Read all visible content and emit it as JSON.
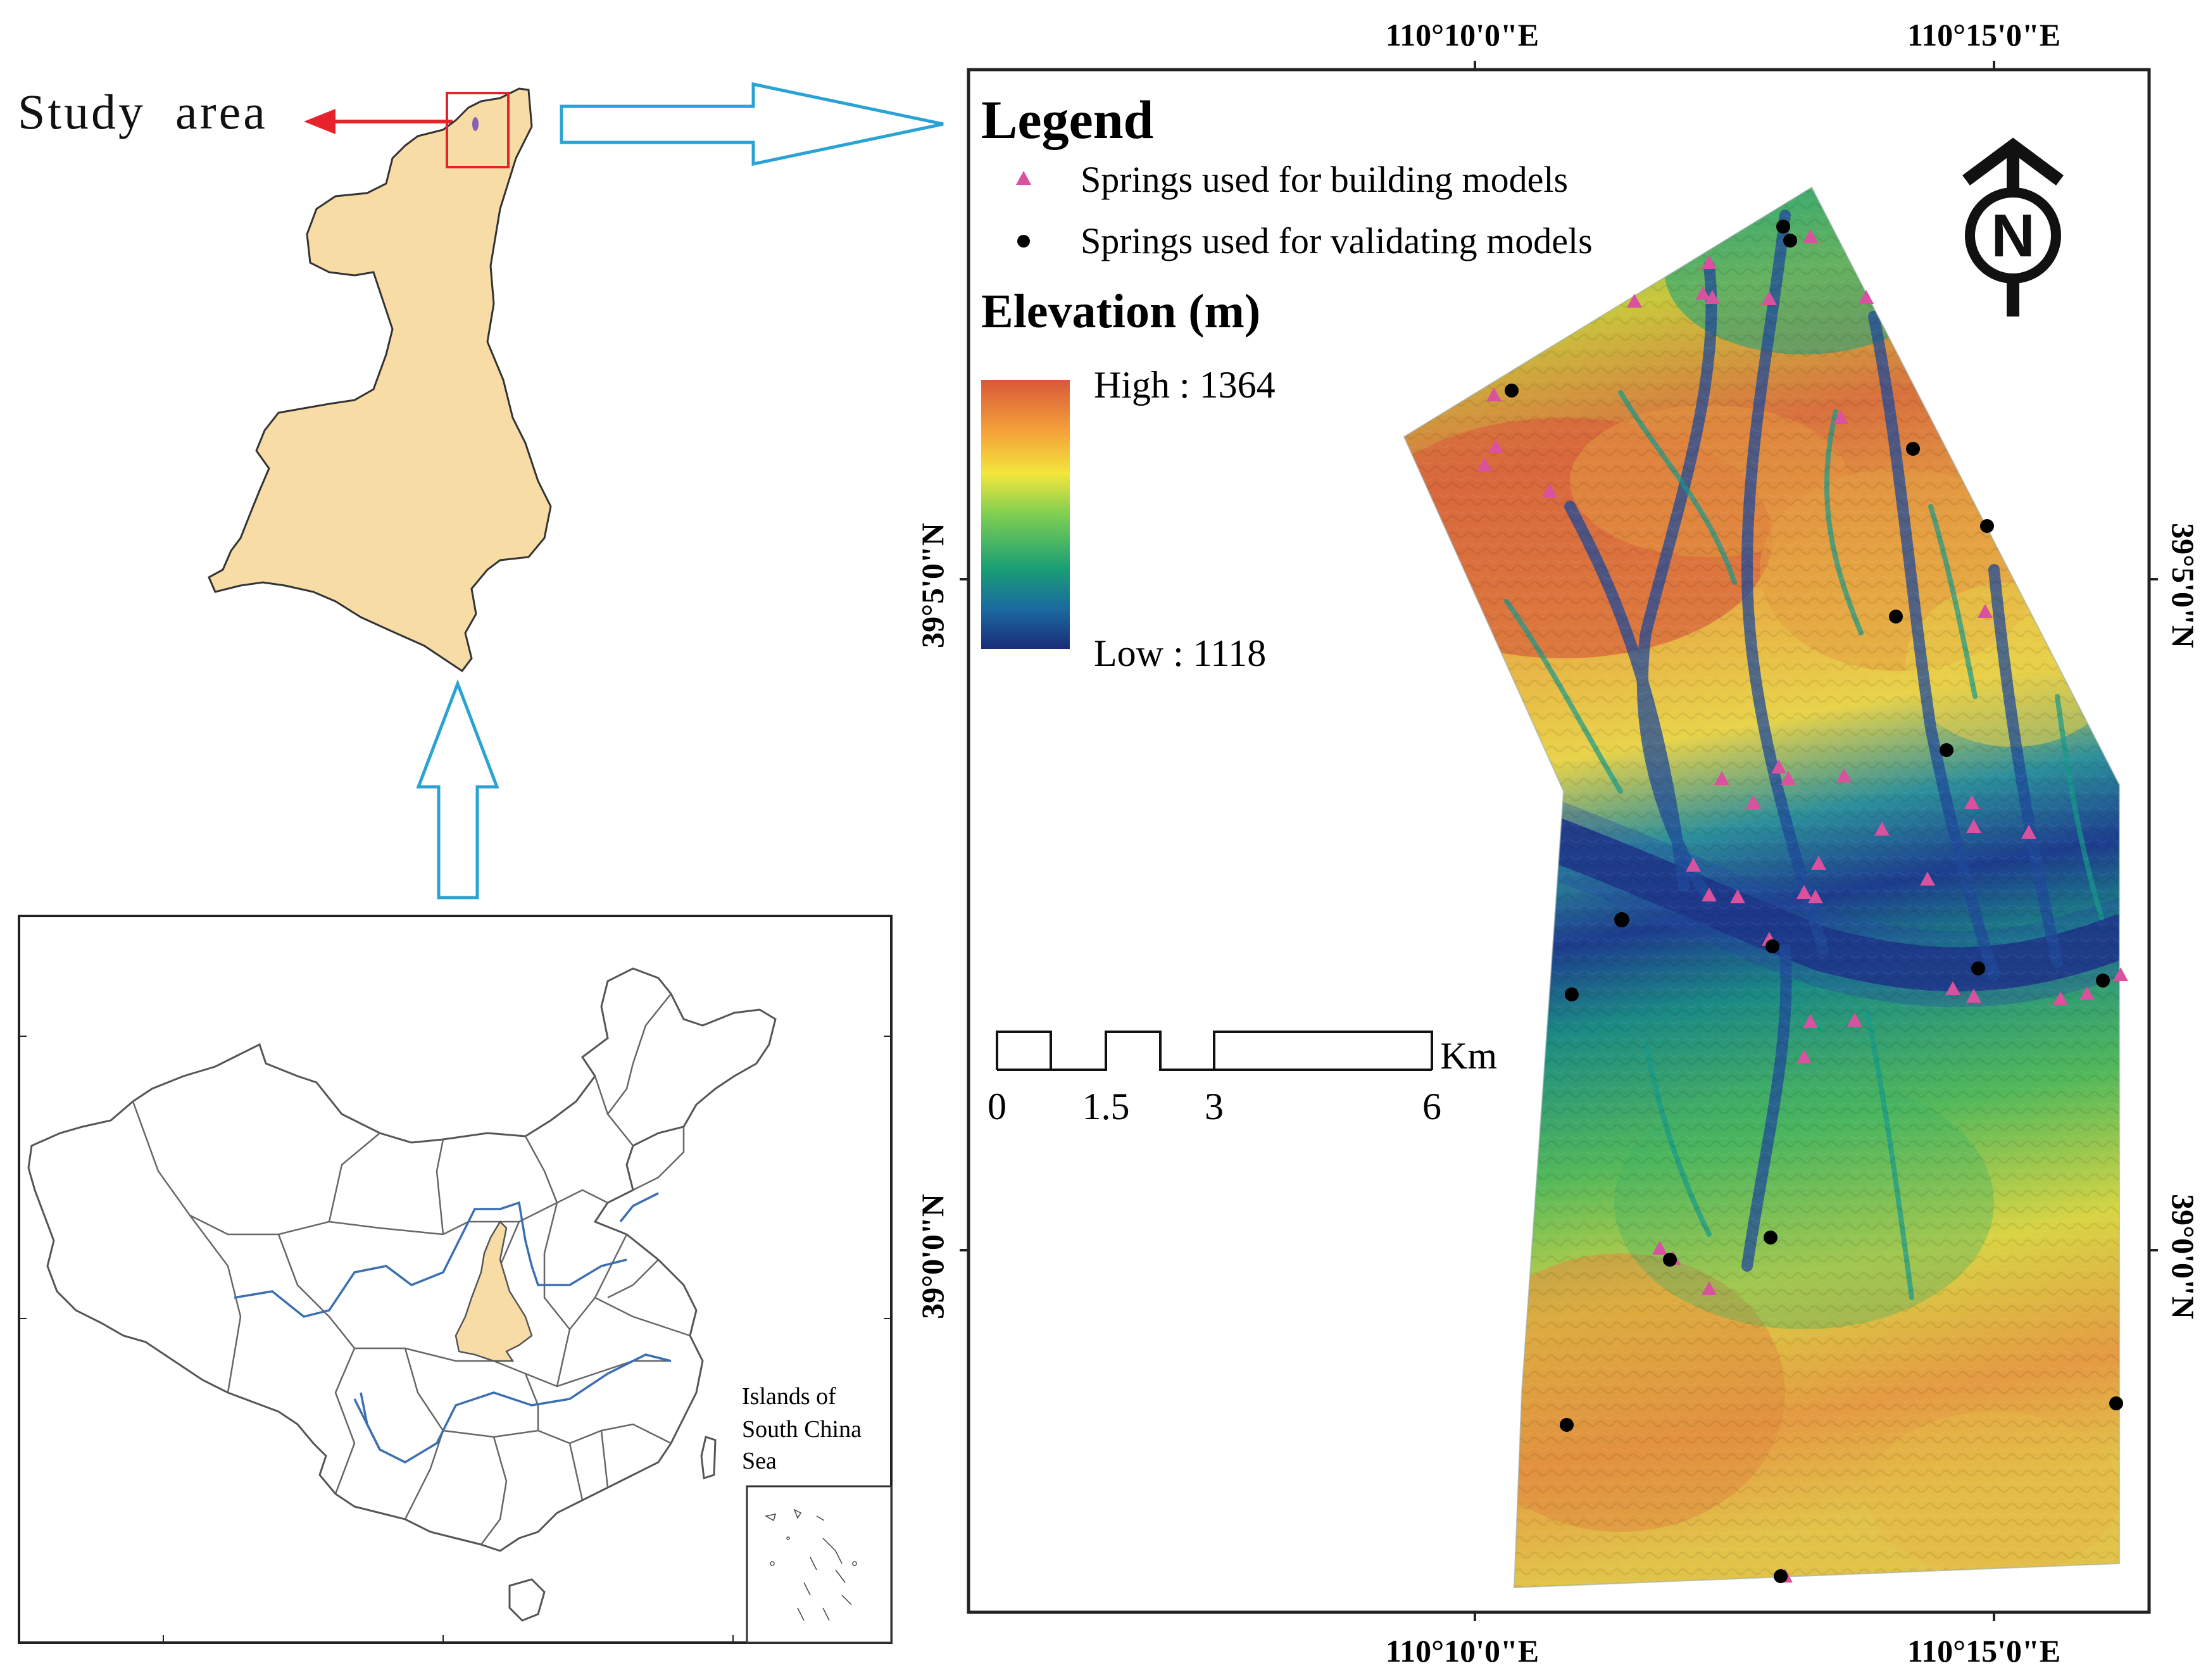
{
  "study_area_label": "Study  area",
  "legend": {
    "title": "Legend",
    "build_label": "Springs used for building models",
    "valid_label": "Springs used for validating models",
    "elevation_title": "Elevation (m)",
    "high_label": "High : 1364",
    "low_label": "Low : 1118",
    "colors": {
      "build": "#d9519f",
      "valid": "#000000"
    }
  },
  "north_arrow": {
    "letter": "N"
  },
  "coords": {
    "x_tick_1": "110°10'0\"E",
    "x_tick_2": "110°15'0\"E",
    "y_tick_1": "39°5'0\"N",
    "y_tick_2": "39°0'0\"N"
  },
  "scale_bar": {
    "unit": "Km",
    "labels": [
      "0",
      "1.5",
      "3",
      "6"
    ]
  },
  "inset": {
    "islands_label_1": "Islands of",
    "islands_label_2": "South China",
    "islands_label_3": "Sea"
  },
  "colors": {
    "province_fill": "#f8dca6",
    "arrow_blue": "#2aa3d4",
    "red": "#e6232a",
    "river_blue": "#3a6fb0",
    "dem_high": "#d2633a",
    "dem_low": "#1c2e7a"
  }
}
